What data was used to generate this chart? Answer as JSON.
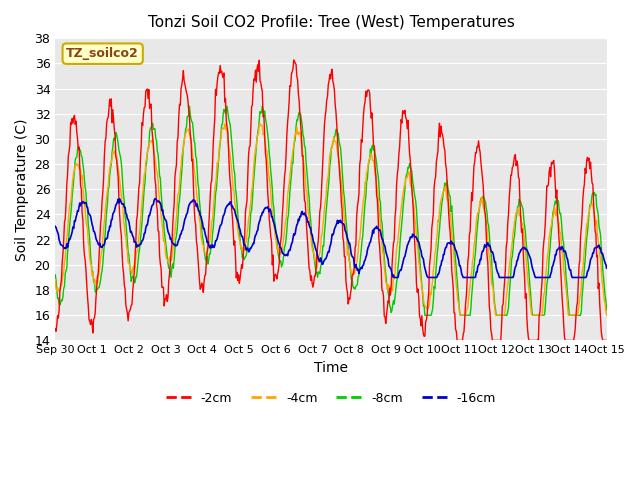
{
  "title": "Tonzi Soil CO2 Profile: Tree (West) Temperatures",
  "xlabel": "Time",
  "ylabel": "Soil Temperature (C)",
  "ylim": [
    14,
    38
  ],
  "yticks": [
    14,
    16,
    18,
    20,
    22,
    24,
    26,
    28,
    30,
    32,
    34,
    36,
    38
  ],
  "legend_label": "TZ_soilco2",
  "bg_color": "#e8e8e8",
  "colors": {
    "-2cm": "#ff0000",
    "-4cm": "#ffa500",
    "-8cm": "#00cc00",
    "-16cm": "#0000cc"
  },
  "xtick_labels": [
    "Sep 30",
    "Oct 1",
    "Oct 2",
    "Oct 3",
    "Oct 4",
    "Oct 5",
    "Oct 6",
    "Oct 7",
    "Oct 8",
    "Oct 9",
    "Oct 10",
    "Oct 11",
    "Oct 12",
    "Oct 13",
    "Oct 14",
    "Oct 15"
  ],
  "n_points_per_day": 48,
  "n_days": 15
}
